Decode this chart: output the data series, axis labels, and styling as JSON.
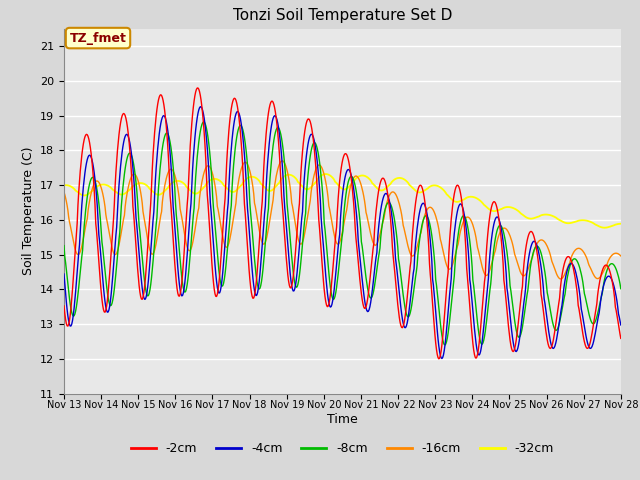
{
  "title": "Tonzi Soil Temperature Set D",
  "xlabel": "Time",
  "ylabel": "Soil Temperature (C)",
  "ylim": [
    11.0,
    21.5
  ],
  "yticks": [
    11.0,
    12.0,
    13.0,
    14.0,
    15.0,
    16.0,
    17.0,
    18.0,
    19.0,
    20.0,
    21.0
  ],
  "series_colors": {
    "-2cm": "#ff0000",
    "-4cm": "#0000cc",
    "-8cm": "#00bb00",
    "-16cm": "#ff8800",
    "-32cm": "#ffff00"
  },
  "annotation_text": "TZ_fmet",
  "annotation_bg": "#ffffcc",
  "annotation_border": "#cc8800",
  "x_tick_labels": [
    "Nov 13",
    "Nov 14",
    "Nov 15",
    "Nov 16",
    "Nov 17",
    "Nov 18",
    "Nov 19",
    "Nov 20",
    "Nov 21",
    "Nov 22",
    "Nov 23",
    "Nov 24",
    "Nov 25",
    "Nov 26",
    "Nov 27",
    "Nov 28"
  ],
  "n_days": 15,
  "pts_per_day": 48,
  "figwidth": 6.4,
  "figheight": 4.8,
  "dpi": 100
}
